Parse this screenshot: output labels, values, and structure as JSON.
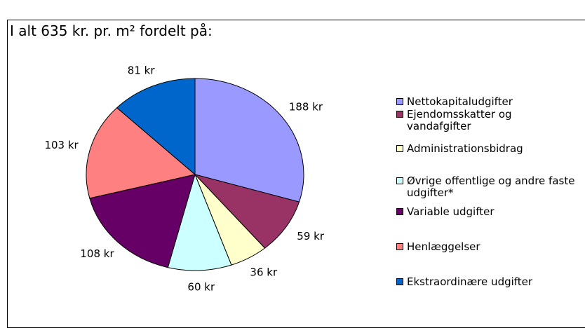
{
  "chart_data": {
    "type": "pie",
    "title": "I alt 635 kr. pr. m² fordelt på:",
    "categories": [
      "Nettokapitaludgifter",
      "Ejendomsskatter og vandafgifter",
      "Administrationsbidrag",
      "Øvrige offentlige og andre faste udgifter*",
      "Variable udgifter",
      "Henlæggelser",
      "Ekstraordinære udgifter"
    ],
    "values": [
      188,
      59,
      36,
      60,
      108,
      103,
      81
    ],
    "value_labels": [
      "188 kr",
      "59 kr",
      "36 kr",
      "60 kr",
      "108 kr",
      "103 kr",
      "81 kr"
    ],
    "colors": [
      "#9999ff",
      "#993366",
      "#ffffcc",
      "#ccffff",
      "#660066",
      "#ff8080",
      "#0066cc"
    ],
    "legend": "right"
  }
}
